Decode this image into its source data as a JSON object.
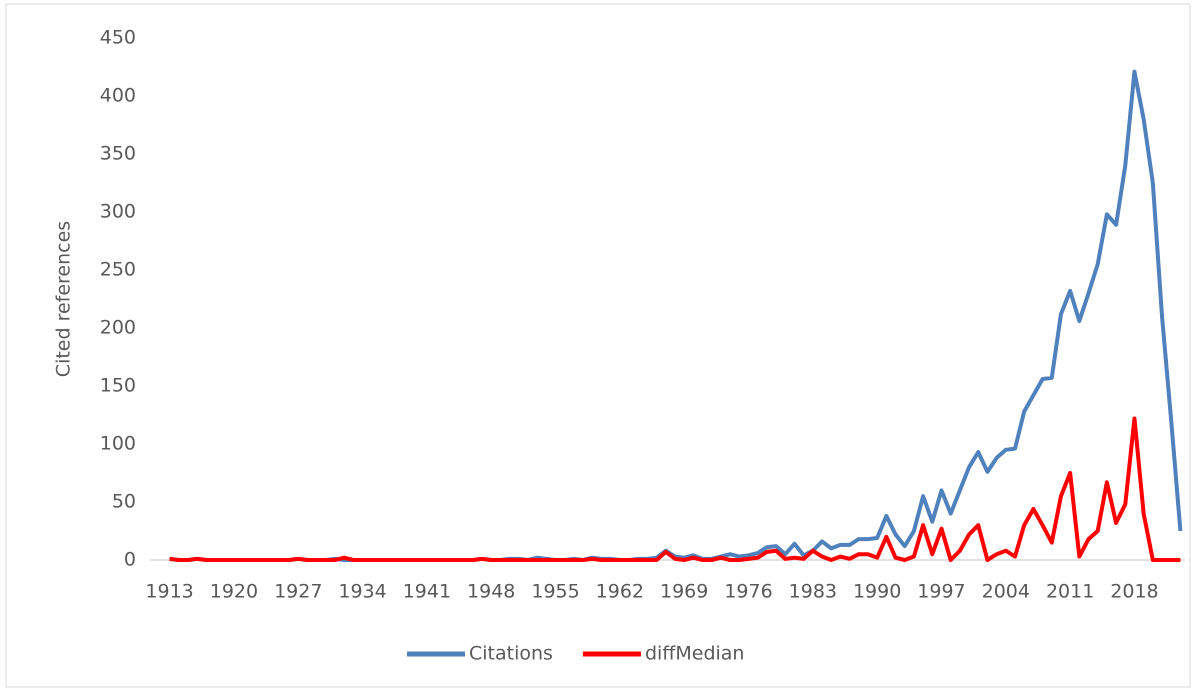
{
  "chart_data": {
    "type": "line",
    "y_label": "Cited references",
    "categories": [
      "1913",
      null,
      null,
      null,
      null,
      null,
      null,
      "1920",
      null,
      null,
      null,
      null,
      null,
      null,
      "1927",
      null,
      null,
      null,
      null,
      null,
      null,
      "1934",
      null,
      null,
      null,
      null,
      null,
      null,
      "1941",
      null,
      null,
      null,
      null,
      null,
      null,
      "1948",
      null,
      null,
      null,
      null,
      null,
      null,
      "1955",
      null,
      null,
      null,
      null,
      null,
      null,
      "1962",
      null,
      null,
      null,
      null,
      null,
      null,
      "1969",
      null,
      null,
      null,
      null,
      null,
      null,
      "1976",
      null,
      null,
      null,
      null,
      null,
      null,
      "1983",
      null,
      null,
      null,
      null,
      null,
      null,
      "1990",
      null,
      null,
      null,
      null,
      null,
      null,
      "1997",
      null,
      null,
      null,
      null,
      null,
      null,
      "2004",
      null,
      null,
      null,
      null,
      null,
      null,
      "2011",
      null,
      null,
      null,
      null,
      null,
      null,
      "2018",
      null,
      null,
      null,
      null,
      null
    ],
    "series": [
      {
        "name": "Citations",
        "color": "#4f81bd",
        "values": [
          1,
          0,
          0,
          1,
          0,
          0,
          0,
          0,
          0,
          0,
          0,
          0,
          0,
          0,
          1,
          0,
          0,
          0,
          1,
          0,
          0,
          0,
          0,
          0,
          0,
          0,
          0,
          0,
          0,
          0,
          0,
          0,
          0,
          0,
          1,
          0,
          0,
          1,
          1,
          0,
          2,
          1,
          0,
          0,
          1,
          0,
          2,
          1,
          1,
          0,
          0,
          1,
          1,
          2,
          8,
          3,
          2,
          4,
          1,
          1,
          3,
          5,
          3,
          4,
          6,
          11,
          12,
          5,
          14,
          4,
          8,
          16,
          10,
          13,
          13,
          18,
          18,
          19,
          38,
          22,
          12,
          25,
          55,
          33,
          60,
          40,
          60,
          80,
          93,
          76,
          88,
          95,
          96,
          128,
          142,
          156,
          157,
          212,
          232,
          206,
          230,
          255,
          298,
          289,
          340,
          421,
          380,
          325,
          210,
          120,
          25
        ]
      },
      {
        "name": "diffMedian",
        "color": "#ff0000",
        "values": [
          1,
          0,
          0,
          1,
          0,
          0,
          0,
          0,
          0,
          0,
          0,
          0,
          0,
          0,
          1,
          0,
          0,
          0,
          0,
          2,
          0,
          0,
          0,
          0,
          0,
          0,
          0,
          0,
          0,
          0,
          0,
          0,
          0,
          0,
          1,
          0,
          0,
          0,
          0,
          0,
          0,
          0,
          0,
          0,
          0,
          0,
          1,
          0,
          0,
          0,
          0,
          0,
          0,
          0,
          7,
          1,
          0,
          2,
          0,
          0,
          2,
          0,
          0,
          1,
          2,
          7,
          8,
          1,
          2,
          1,
          8,
          3,
          0,
          3,
          1,
          5,
          5,
          2,
          20,
          2,
          0,
          3,
          30,
          5,
          27,
          0,
          8,
          22,
          30,
          0,
          5,
          8,
          3,
          30,
          44,
          30,
          15,
          55,
          75,
          3,
          18,
          25,
          67,
          32,
          48,
          122,
          40,
          0,
          0,
          0,
          0
        ]
      }
    ],
    "ylim": [
      0,
      450
    ],
    "yticks": [
      0,
      50,
      100,
      150,
      200,
      250,
      300,
      350,
      400,
      450
    ],
    "legend": "bottom"
  }
}
